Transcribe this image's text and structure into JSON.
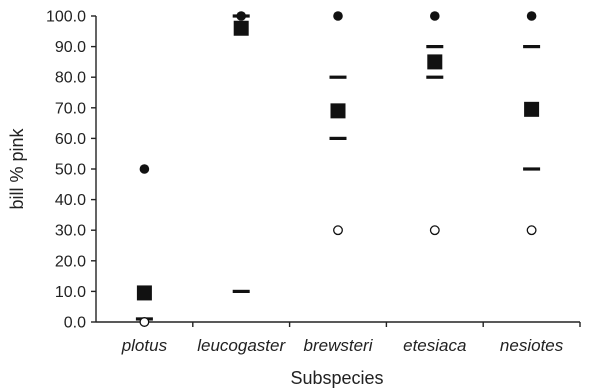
{
  "chart_data": {
    "type": "scatter",
    "xlabel": "Subspecies",
    "ylabel": "bill % pink",
    "ylim": [
      0,
      100
    ],
    "yticks": [
      "0.0",
      "10.0",
      "20.0",
      "30.0",
      "40.0",
      "50.0",
      "60.0",
      "70.0",
      "80.0",
      "90.0",
      "100.0"
    ],
    "categories": [
      "plotus",
      "leucogaster",
      "brewsteri",
      "etesiaca",
      "nesiotes"
    ],
    "series": [
      {
        "marker": "filled-circle",
        "values": [
          50,
          100,
          100,
          100,
          100
        ]
      },
      {
        "marker": "filled-square",
        "values": [
          9.5,
          96,
          69,
          85,
          69.5
        ]
      },
      {
        "marker": "dash",
        "values": [
          1,
          10,
          80,
          90,
          90
        ]
      },
      {
        "marker": "dash",
        "values": [
          null,
          100,
          60,
          80,
          50
        ]
      },
      {
        "marker": "open-circle",
        "values": [
          0,
          null,
          30,
          30,
          30
        ]
      }
    ],
    "grid": false,
    "legend": "none"
  }
}
